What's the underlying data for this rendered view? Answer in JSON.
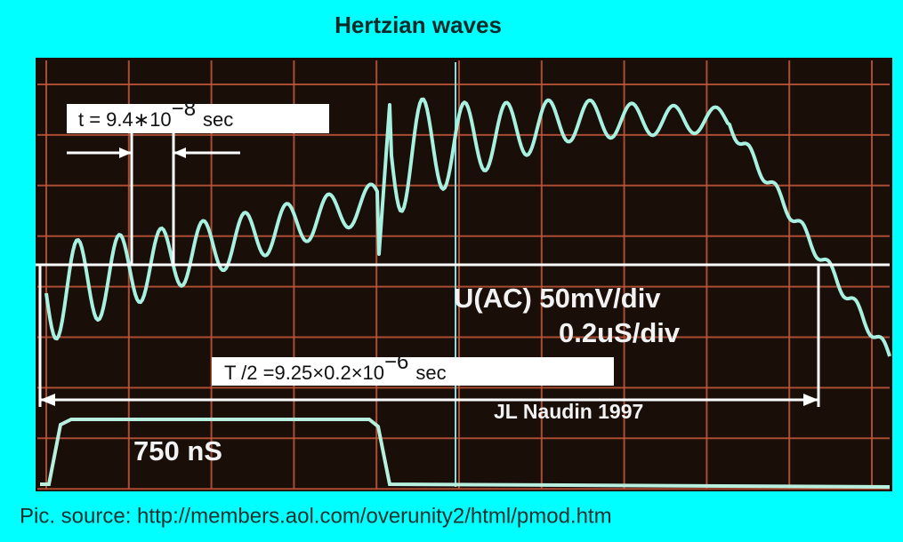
{
  "title": "Hertzian waves",
  "annotations": {
    "period_short": {
      "text": "t = 9.4∗10",
      "exponent": "−8",
      "unit": "sec"
    },
    "vertical_scale": "U(AC)  50mV/div",
    "time_scale": "0.2uS/div",
    "half_period": {
      "text": "T /2 =9.25×0.2×10",
      "exponent": "−6",
      "unit": "sec"
    },
    "author": "JL Naudin 1997",
    "pulse_width": "750 nS"
  },
  "footer": "Pic. source:  http://members.aol.com/overunity2/html/pmod.htm"
}
